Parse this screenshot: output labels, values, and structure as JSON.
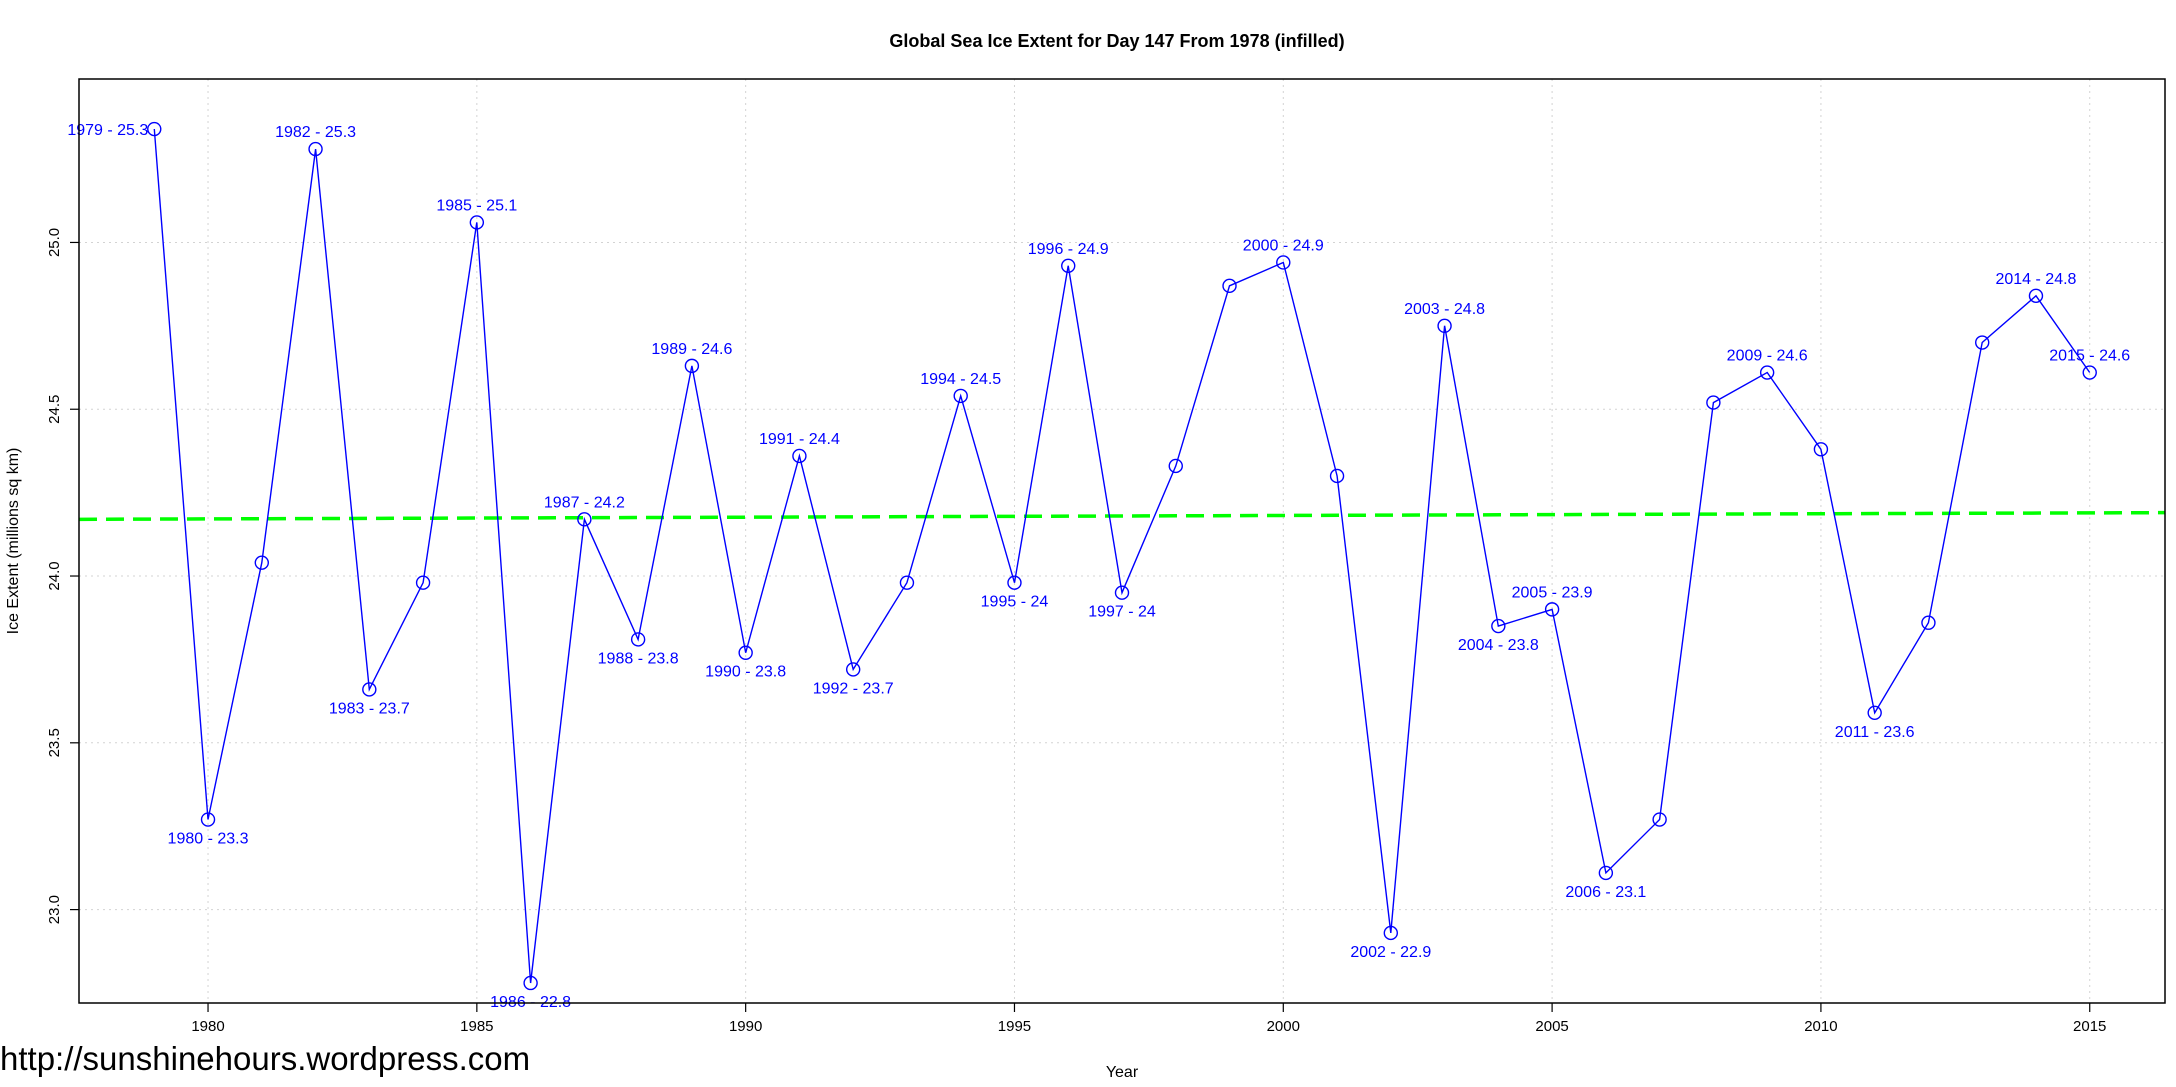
{
  "watermark": "http://sunshinehours.wordpress.com",
  "chart_data": {
    "type": "line",
    "title": "Global Sea Ice Extent for Day 147 From 1978 (infilled)",
    "xlabel": "Year",
    "ylabel": "Ice Extent (millions sq km)",
    "xlim": [
      1977.6,
      2016.4
    ],
    "ylim": [
      22.72,
      25.49
    ],
    "x_ticks": [
      1980,
      1985,
      1990,
      1995,
      2000,
      2005,
      2010,
      2015
    ],
    "y_ticks": [
      23.0,
      23.5,
      24.0,
      24.5,
      25.0
    ],
    "y_tick_labels": [
      "23.0",
      "23.5",
      "24.0",
      "24.5",
      "25.0"
    ],
    "grid": true,
    "series": [
      {
        "color": "#0000ff",
        "marker": "open-circle",
        "points": [
          {
            "x": 1979,
            "y": 25.34,
            "label": "1979 - 25.3",
            "pos": "left"
          },
          {
            "x": 1980,
            "y": 23.27,
            "label": "1980 - 23.3",
            "pos": "below"
          },
          {
            "x": 1981,
            "y": 24.04,
            "label": "",
            "pos": "none"
          },
          {
            "x": 1982,
            "y": 25.28,
            "label": "1982 - 25.3",
            "pos": "above"
          },
          {
            "x": 1983,
            "y": 23.66,
            "label": "1983 - 23.7",
            "pos": "below"
          },
          {
            "x": 1984,
            "y": 23.98,
            "label": "",
            "pos": "none"
          },
          {
            "x": 1985,
            "y": 25.06,
            "label": "1985 - 25.1",
            "pos": "above"
          },
          {
            "x": 1986,
            "y": 22.78,
            "label": "1986 - 22.8",
            "pos": "below"
          },
          {
            "x": 1987,
            "y": 24.17,
            "label": "1987 - 24.2",
            "pos": "above"
          },
          {
            "x": 1988,
            "y": 23.81,
            "label": "1988 - 23.8",
            "pos": "below"
          },
          {
            "x": 1989,
            "y": 24.63,
            "label": "1989 - 24.6",
            "pos": "above"
          },
          {
            "x": 1990,
            "y": 23.77,
            "label": "1990 - 23.8",
            "pos": "below"
          },
          {
            "x": 1991,
            "y": 24.36,
            "label": "1991 - 24.4",
            "pos": "above"
          },
          {
            "x": 1992,
            "y": 23.72,
            "label": "1992 - 23.7",
            "pos": "below"
          },
          {
            "x": 1993,
            "y": 23.98,
            "label": "",
            "pos": "none"
          },
          {
            "x": 1994,
            "y": 24.54,
            "label": "1994 - 24.5",
            "pos": "above"
          },
          {
            "x": 1995,
            "y": 23.98,
            "label": "1995 - 24",
            "pos": "below"
          },
          {
            "x": 1996,
            "y": 24.93,
            "label": "1996 - 24.9",
            "pos": "above"
          },
          {
            "x": 1997,
            "y": 23.95,
            "label": "1997 - 24",
            "pos": "below"
          },
          {
            "x": 1998,
            "y": 24.33,
            "label": "",
            "pos": "none"
          },
          {
            "x": 1999,
            "y": 24.87,
            "label": "",
            "pos": "none"
          },
          {
            "x": 2000,
            "y": 24.94,
            "label": "2000 - 24.9",
            "pos": "above"
          },
          {
            "x": 2001,
            "y": 24.3,
            "label": "",
            "pos": "none"
          },
          {
            "x": 2002,
            "y": 22.93,
            "label": "2002 - 22.9",
            "pos": "below"
          },
          {
            "x": 2003,
            "y": 24.75,
            "label": "2003 - 24.8",
            "pos": "above"
          },
          {
            "x": 2004,
            "y": 23.85,
            "label": "2004 - 23.8",
            "pos": "below"
          },
          {
            "x": 2005,
            "y": 23.9,
            "label": "2005 - 23.9",
            "pos": "above"
          },
          {
            "x": 2006,
            "y": 23.11,
            "label": "2006 - 23.1",
            "pos": "below"
          },
          {
            "x": 2007,
            "y": 23.27,
            "label": "",
            "pos": "none"
          },
          {
            "x": 2008,
            "y": 24.52,
            "label": "",
            "pos": "none"
          },
          {
            "x": 2009,
            "y": 24.61,
            "label": "2009 - 24.6",
            "pos": "above"
          },
          {
            "x": 2010,
            "y": 24.38,
            "label": "",
            "pos": "none"
          },
          {
            "x": 2011,
            "y": 23.59,
            "label": "2011 - 23.6",
            "pos": "below"
          },
          {
            "x": 2012,
            "y": 23.86,
            "label": "",
            "pos": "none"
          },
          {
            "x": 2013,
            "y": 24.7,
            "label": "",
            "pos": "none"
          },
          {
            "x": 2014,
            "y": 24.84,
            "label": "2014 - 24.8",
            "pos": "above"
          },
          {
            "x": 2015,
            "y": 24.61,
            "label": "2015 - 24.6",
            "pos": "above"
          }
        ]
      }
    ],
    "trend_line": {
      "color": "#00ff00",
      "style": "dashed",
      "x": [
        1977.6,
        2016.4
      ],
      "y": [
        24.17,
        24.19
      ]
    }
  }
}
